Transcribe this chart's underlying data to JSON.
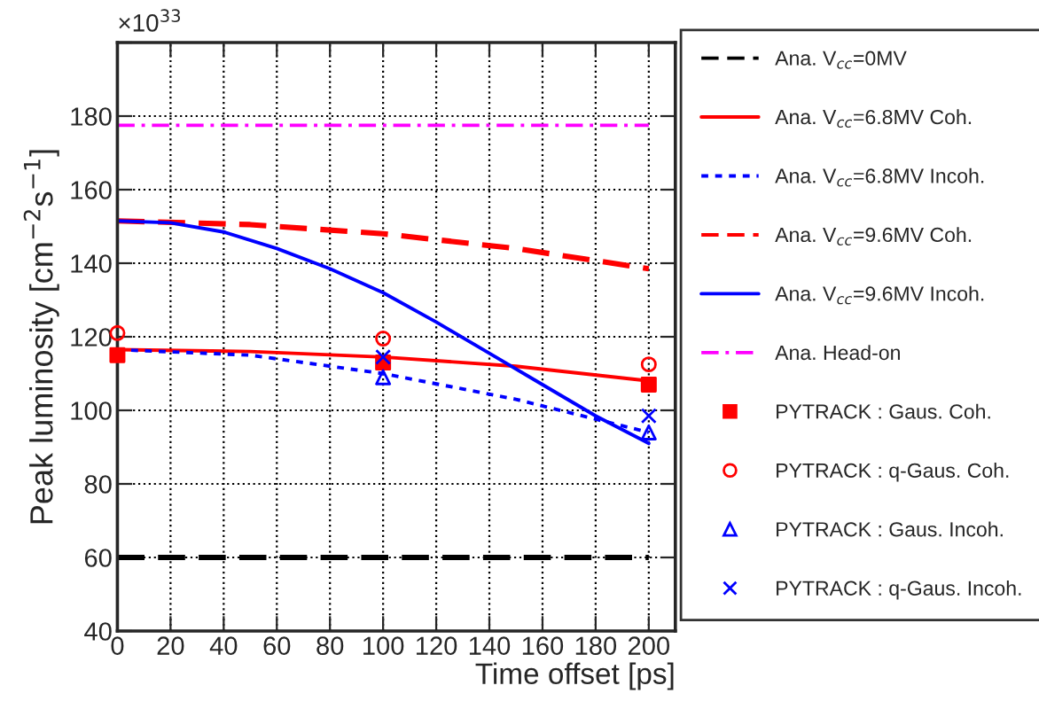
{
  "chart_data": {
    "type": "line",
    "xlabel": "Time offset [ps]",
    "ylabel": "Peak luminosity [cm$^{−2}$s$^{−1}$]",
    "annotations": [
      "×10$^{33}$"
    ],
    "xlim": [
      0,
      210
    ],
    "xticks": [
      0,
      20,
      40,
      60,
      80,
      100,
      120,
      140,
      160,
      180,
      200
    ],
    "ylim": [
      40,
      200
    ],
    "yticks": [
      40,
      60,
      80,
      100,
      120,
      140,
      160,
      180,
      {
        "value": 200,
        "label": null
      }
    ],
    "grid": true,
    "legend": "right",
    "series": [
      {
        "name": "Ana. V$_{cc}$=0MV",
        "color": "#000000",
        "line_style": "dashed",
        "x": [
          0,
          200
        ],
        "values": [
          60,
          60
        ]
      },
      {
        "name": "Ana. V$_{cc}$=6.8MV Coh.",
        "color": "#ff0000",
        "line_style": "solid",
        "x": [
          0,
          50,
          100,
          150,
          200
        ],
        "values": [
          116.5,
          116,
          114.5,
          112,
          108
        ]
      },
      {
        "name": "Ana. V$_{cc}$=6.8MV Incoh.",
        "color": "#0000ff",
        "line_style": "dotted",
        "x": [
          0,
          50,
          100,
          150,
          200
        ],
        "values": [
          116.5,
          115,
          110,
          103,
          94
        ]
      },
      {
        "name": "Ana. V$_{cc}$=9.6MV Coh.",
        "color": "#ff0000",
        "line_style": "dashed",
        "x": [
          0,
          50,
          100,
          150,
          200
        ],
        "values": [
          151.5,
          150.5,
          148,
          144,
          138.5
        ]
      },
      {
        "name": "Ana. V$_{cc}$=9.6MV Incoh.",
        "color": "#0000ff",
        "line_style": "solid",
        "x": [
          0,
          20,
          40,
          60,
          80,
          100,
          120,
          140,
          160,
          180,
          200
        ],
        "values": [
          151.5,
          151,
          148.5,
          144,
          138.5,
          132,
          124,
          115.5,
          107,
          98.5,
          91
        ]
      },
      {
        "name": "Ana. Head-on",
        "color": "#ff00ff",
        "line_style": "dashdot",
        "x": [
          0,
          200
        ],
        "values": [
          177.5,
          177.5
        ]
      },
      {
        "name": "PYTRACK : Gaus. Coh.",
        "type": "scatter",
        "color": "#ff0000",
        "marker": "square",
        "x": [
          0,
          100,
          200
        ],
        "values": [
          115,
          113,
          107
        ]
      },
      {
        "name": "PYTRACK : q-Gaus. Coh.",
        "type": "scatter",
        "color": "#ff0000",
        "marker": "circle",
        "x": [
          0,
          100,
          200
        ],
        "values": [
          121,
          119.5,
          112.5
        ]
      },
      {
        "name": "PYTRACK : Gaus. Incoh.",
        "type": "scatter",
        "color": "#0000ff",
        "marker": "triangle",
        "x": [
          100,
          200
        ],
        "values": [
          109,
          94
        ]
      },
      {
        "name": "PYTRACK : q-Gaus. Incoh.",
        "type": "scatter",
        "color": "#0000ff",
        "marker": "cross",
        "x": [
          100,
          200
        ],
        "values": [
          114.5,
          98.5
        ]
      }
    ]
  }
}
